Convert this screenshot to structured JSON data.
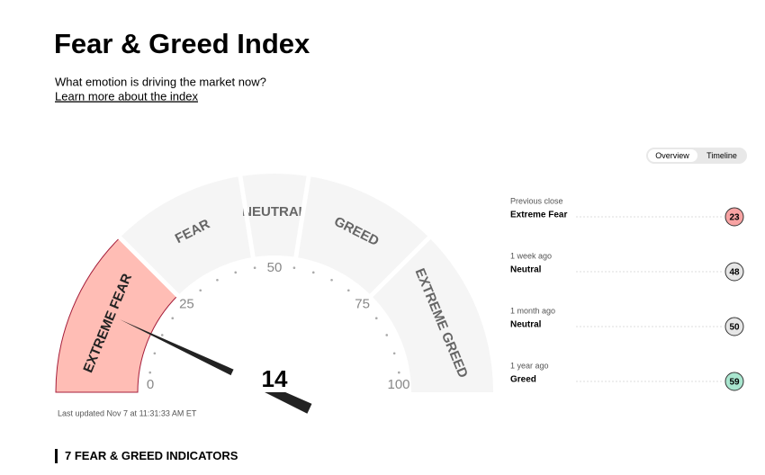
{
  "header": {
    "title": "Fear & Greed Index",
    "subtitle": "What emotion is driving the market now?",
    "link": "Learn more about the index"
  },
  "tabs": [
    "Overview",
    "Timeline"
  ],
  "gauge": {
    "value": 14,
    "segments": [
      {
        "label": "EXTREME FEAR",
        "color": "#ffbdb5"
      },
      {
        "label": "FEAR",
        "color": "#f5f5f5"
      },
      {
        "label": "NEUTRAL",
        "color": "#f5f5f5"
      },
      {
        "label": "GREED",
        "color": "#f5f5f5"
      },
      {
        "label": "EXTREME GREED",
        "color": "#f5f5f5"
      }
    ],
    "ticks": [
      0,
      25,
      50,
      75,
      100
    ],
    "updated": "Last updated Nov 7 at 11:31:33 AM ET"
  },
  "history": [
    {
      "period": "Previous close",
      "label": "Extreme Fear",
      "value": 23,
      "color": "#f8a3a3"
    },
    {
      "period": "1 week ago",
      "label": "Neutral",
      "value": 48,
      "color": "#e6e6e6"
    },
    {
      "period": "1 month ago",
      "label": "Neutral",
      "value": 50,
      "color": "#e6e6e6"
    },
    {
      "period": "1 year ago",
      "label": "Greed",
      "value": 59,
      "color": "#a9e6cf"
    }
  ],
  "section_title": "7 FEAR & GREED INDICATORS"
}
